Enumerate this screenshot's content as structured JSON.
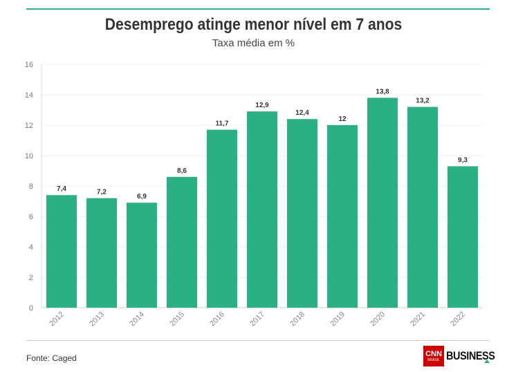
{
  "chart_data": {
    "type": "bar",
    "title": "Desemprego atinge menor nível em 7 anos",
    "subtitle": "Taxa média em %",
    "categories": [
      "2012",
      "2013",
      "2014",
      "2015",
      "2016",
      "2017",
      "2018",
      "2019",
      "2020",
      "2021",
      "2022"
    ],
    "values": [
      7.4,
      7.2,
      6.9,
      8.6,
      11.7,
      12.9,
      12.4,
      12,
      13.8,
      13.2,
      9.3
    ],
    "value_labels": [
      "7,4",
      "7,2",
      "6,9",
      "8,6",
      "11,7",
      "12,9",
      "12,4",
      "12",
      "13,8",
      "13,2",
      "9,3"
    ],
    "ylim": [
      0,
      16
    ],
    "yticks": [
      0,
      2,
      4,
      6,
      8,
      10,
      12,
      14,
      16
    ],
    "grid": true,
    "bar_color": "#2bb086",
    "xlabel": "",
    "ylabel": ""
  },
  "footer": {
    "source": "Fonte: Caged",
    "logo_mark": "CNN",
    "logo_mark_sub": "BRASIL",
    "logo_text": "BUSINESS"
  },
  "colors": {
    "accent": "#2bb086",
    "logo_red": "#cc0000"
  }
}
